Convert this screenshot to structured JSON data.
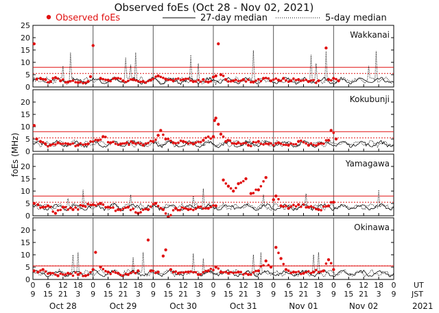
{
  "chart_data": {
    "type": "scatter",
    "title": "Observed foEs (Oct 28 - Nov 02, 2021)",
    "legend": {
      "observed": "Observed foEs",
      "median27": "27-day median",
      "median5": "5-day median"
    },
    "ylabel": "foEs (MHz)",
    "ylim": [
      0,
      25
    ],
    "yticks": [
      "0",
      "5",
      "10",
      "15",
      "20",
      "25"
    ],
    "xlim_hours": [
      0,
      144
    ],
    "x_ut_ticks": [
      "0",
      "6",
      "12",
      "18",
      "0",
      "6",
      "12",
      "18",
      "0",
      "6",
      "12",
      "18",
      "0",
      "6",
      "12",
      "18",
      "0",
      "6",
      "12",
      "18",
      "0",
      "6",
      "12",
      "18",
      "0"
    ],
    "x_jst_ticks": [
      "9",
      "15",
      "21",
      "3",
      "9",
      "15",
      "21",
      "3",
      "9",
      "15",
      "21",
      "3",
      "9",
      "15",
      "21",
      "3",
      "9",
      "15",
      "21",
      "3",
      "9",
      "15",
      "21",
      "3",
      "9"
    ],
    "ut_label": "UT",
    "jst_label": "JST",
    "dates": [
      "Oct 28",
      "Oct 29",
      "Oct 30",
      "Oct 31",
      "Nov 01",
      "Nov 02"
    ],
    "year": "2021",
    "colors": {
      "observed": "#e01010",
      "refline": "#e01010",
      "median": "#000000",
      "grid": "#999999"
    },
    "stations": [
      {
        "name": "Wakkanai",
        "ref_solid": 8.0,
        "ref_dotted": 5.5,
        "baseline": 2.5,
        "obs_points": [
          [
            0.5,
            17.5
          ],
          [
            1.5,
            3.2
          ],
          [
            3,
            3.5
          ],
          [
            5,
            3.0
          ],
          [
            7,
            2.2
          ],
          [
            9,
            3.8
          ],
          [
            11,
            2.5
          ],
          [
            14,
            2.0
          ],
          [
            18,
            1.8
          ],
          [
            22,
            2.2
          ],
          [
            23,
            4.2
          ],
          [
            24,
            16.8
          ],
          [
            27,
            3.5
          ],
          [
            30,
            2.8
          ],
          [
            33,
            3.5
          ],
          [
            36,
            2.5
          ],
          [
            40,
            3.0
          ],
          [
            44,
            2.2
          ],
          [
            47,
            2.8
          ],
          [
            50,
            4.5
          ],
          [
            53,
            3.2
          ],
          [
            56,
            2.5
          ],
          [
            60,
            3.0
          ],
          [
            64,
            2.2
          ],
          [
            68,
            3.0
          ],
          [
            70,
            2.0
          ],
          [
            72,
            4.0
          ],
          [
            73,
            4.5
          ],
          [
            74,
            17.5
          ],
          [
            75,
            5.0
          ],
          [
            77,
            3.0
          ],
          [
            80,
            2.5
          ],
          [
            84,
            3.0
          ],
          [
            88,
            2.0
          ],
          [
            92,
            3.5
          ],
          [
            95,
            2.5
          ],
          [
            98,
            2.8
          ],
          [
            100,
            3.5
          ],
          [
            103,
            2.5
          ],
          [
            106,
            3.0
          ],
          [
            110,
            2.2
          ],
          [
            114,
            2.5
          ],
          [
            117,
            15.8
          ],
          [
            118,
            3.0
          ],
          [
            120,
            3.5
          ],
          [
            122,
            2.5
          ]
        ],
        "med_spikes": [
          [
            12,
            8.5
          ],
          [
            15,
            14
          ],
          [
            37,
            12
          ],
          [
            39,
            9
          ],
          [
            41,
            14
          ],
          [
            63,
            13
          ],
          [
            66,
            9.5
          ],
          [
            88,
            14.8
          ],
          [
            111,
            13
          ],
          [
            113,
            9.5
          ],
          [
            117,
            14.5
          ],
          [
            134,
            8.5
          ],
          [
            137,
            14.5
          ]
        ]
      },
      {
        "name": "Kokubunji",
        "ref_solid": 8.0,
        "ref_dotted": 5.5,
        "baseline": 3.0,
        "obs_points": [
          [
            0.5,
            10.5
          ],
          [
            1.5,
            5.0
          ],
          [
            3,
            4.0
          ],
          [
            5,
            3.0
          ],
          [
            7,
            2.5
          ],
          [
            10,
            3.5
          ],
          [
            14,
            3.0
          ],
          [
            18,
            2.5
          ],
          [
            22,
            3.0
          ],
          [
            26,
            4.5
          ],
          [
            28,
            6.0
          ],
          [
            31,
            3.5
          ],
          [
            35,
            3.0
          ],
          [
            40,
            3.5
          ],
          [
            44,
            2.5
          ],
          [
            48,
            4.0
          ],
          [
            50,
            6.5
          ],
          [
            51,
            8.5
          ],
          [
            53,
            5.0
          ],
          [
            56,
            3.5
          ],
          [
            60,
            4.0
          ],
          [
            64,
            3.0
          ],
          [
            68,
            4.5
          ],
          [
            72,
            6.0
          ],
          [
            72.5,
            12.5
          ],
          [
            73,
            13.5
          ],
          [
            74,
            11.0
          ],
          [
            75,
            7.0
          ],
          [
            77,
            4.0
          ],
          [
            82,
            3.5
          ],
          [
            86,
            2.5
          ],
          [
            90,
            4.0
          ],
          [
            94,
            3.0
          ],
          [
            98,
            3.5
          ],
          [
            102,
            2.5
          ],
          [
            106,
            4.0
          ],
          [
            110,
            2.5
          ],
          [
            114,
            3.0
          ],
          [
            118,
            4.5
          ],
          [
            119,
            8.5
          ],
          [
            121,
            5.0
          ]
        ],
        "med_spikes": []
      },
      {
        "name": "Yamagawa",
        "ref_solid": 8.0,
        "ref_dotted": 5.5,
        "baseline": 3.5,
        "obs_points": [
          [
            0.5,
            5.0
          ],
          [
            2,
            4.5
          ],
          [
            4,
            3.5
          ],
          [
            6,
            4.0
          ],
          [
            9,
            1.0
          ],
          [
            12,
            3.5
          ],
          [
            16,
            2.5
          ],
          [
            20,
            4.0
          ],
          [
            24,
            4.5
          ],
          [
            27,
            5.0
          ],
          [
            30,
            3.5
          ],
          [
            34,
            2.5
          ],
          [
            38,
            3.5
          ],
          [
            42,
            1.0
          ],
          [
            46,
            2.5
          ],
          [
            49,
            5.0
          ],
          [
            52,
            2.5
          ],
          [
            54,
            -0.5
          ],
          [
            57,
            3.0
          ],
          [
            62,
            2.5
          ],
          [
            66,
            3.5
          ],
          [
            70,
            3.0
          ],
          [
            73,
            4.0
          ],
          [
            76,
            14.5
          ],
          [
            78,
            12.0
          ],
          [
            80,
            10.0
          ],
          [
            82,
            13.0
          ],
          [
            85,
            15.0
          ],
          [
            87,
            9.0
          ],
          [
            90,
            10.5
          ],
          [
            93,
            15.5
          ],
          [
            96,
            6.5
          ],
          [
            97,
            8.0
          ],
          [
            99,
            4.0
          ],
          [
            102,
            3.0
          ],
          [
            106,
            4.5
          ],
          [
            110,
            3.5
          ],
          [
            114,
            2.5
          ],
          [
            118,
            4.0
          ],
          [
            120,
            5.5
          ]
        ],
        "med_spikes": [
          [
            14,
            7
          ],
          [
            20,
            10.5
          ],
          [
            39,
            8.5
          ],
          [
            64,
            8
          ],
          [
            68,
            11
          ],
          [
            92,
            8.5
          ],
          [
            109,
            9
          ],
          [
            138,
            10.5
          ]
        ]
      },
      {
        "name": "Okinawa",
        "ref_solid": 5.5,
        "ref_dotted": 5.5,
        "baseline": 2.5,
        "obs_points": [
          [
            0.5,
            3.5
          ],
          [
            2,
            3.0
          ],
          [
            4,
            4.0
          ],
          [
            7,
            2.5
          ],
          [
            10,
            1.5
          ],
          [
            14,
            2.5
          ],
          [
            18,
            2.0
          ],
          [
            21,
            1.5
          ],
          [
            24,
            4.0
          ],
          [
            25,
            11.0
          ],
          [
            27,
            5.0
          ],
          [
            30,
            3.0
          ],
          [
            34,
            2.5
          ],
          [
            38,
            2.0
          ],
          [
            42,
            3.5
          ],
          [
            46,
            16.0
          ],
          [
            47,
            3.5
          ],
          [
            50,
            3.0
          ],
          [
            52,
            9.5
          ],
          [
            53,
            12.0
          ],
          [
            55,
            4.0
          ],
          [
            58,
            2.5
          ],
          [
            62,
            3.0
          ],
          [
            66,
            2.0
          ],
          [
            70,
            3.5
          ],
          [
            73,
            5.0
          ],
          [
            75,
            3.0
          ],
          [
            78,
            2.5
          ],
          [
            82,
            3.0
          ],
          [
            86,
            2.0
          ],
          [
            90,
            3.5
          ],
          [
            93,
            7.5
          ],
          [
            95,
            5.0
          ],
          [
            97,
            13.0
          ],
          [
            99,
            8.5
          ],
          [
            101,
            4.0
          ],
          [
            104,
            3.0
          ],
          [
            108,
            2.5
          ],
          [
            112,
            3.0
          ],
          [
            116,
            3.5
          ],
          [
            118,
            8.0
          ],
          [
            120,
            4.0
          ]
        ],
        "med_spikes": [
          [
            16,
            10
          ],
          [
            18,
            11
          ],
          [
            40,
            9
          ],
          [
            44,
            11
          ],
          [
            64,
            10.5
          ],
          [
            68,
            8.5
          ],
          [
            88,
            10
          ],
          [
            91,
            11
          ],
          [
            112,
            10
          ],
          [
            114,
            11
          ]
        ]
      }
    ]
  }
}
